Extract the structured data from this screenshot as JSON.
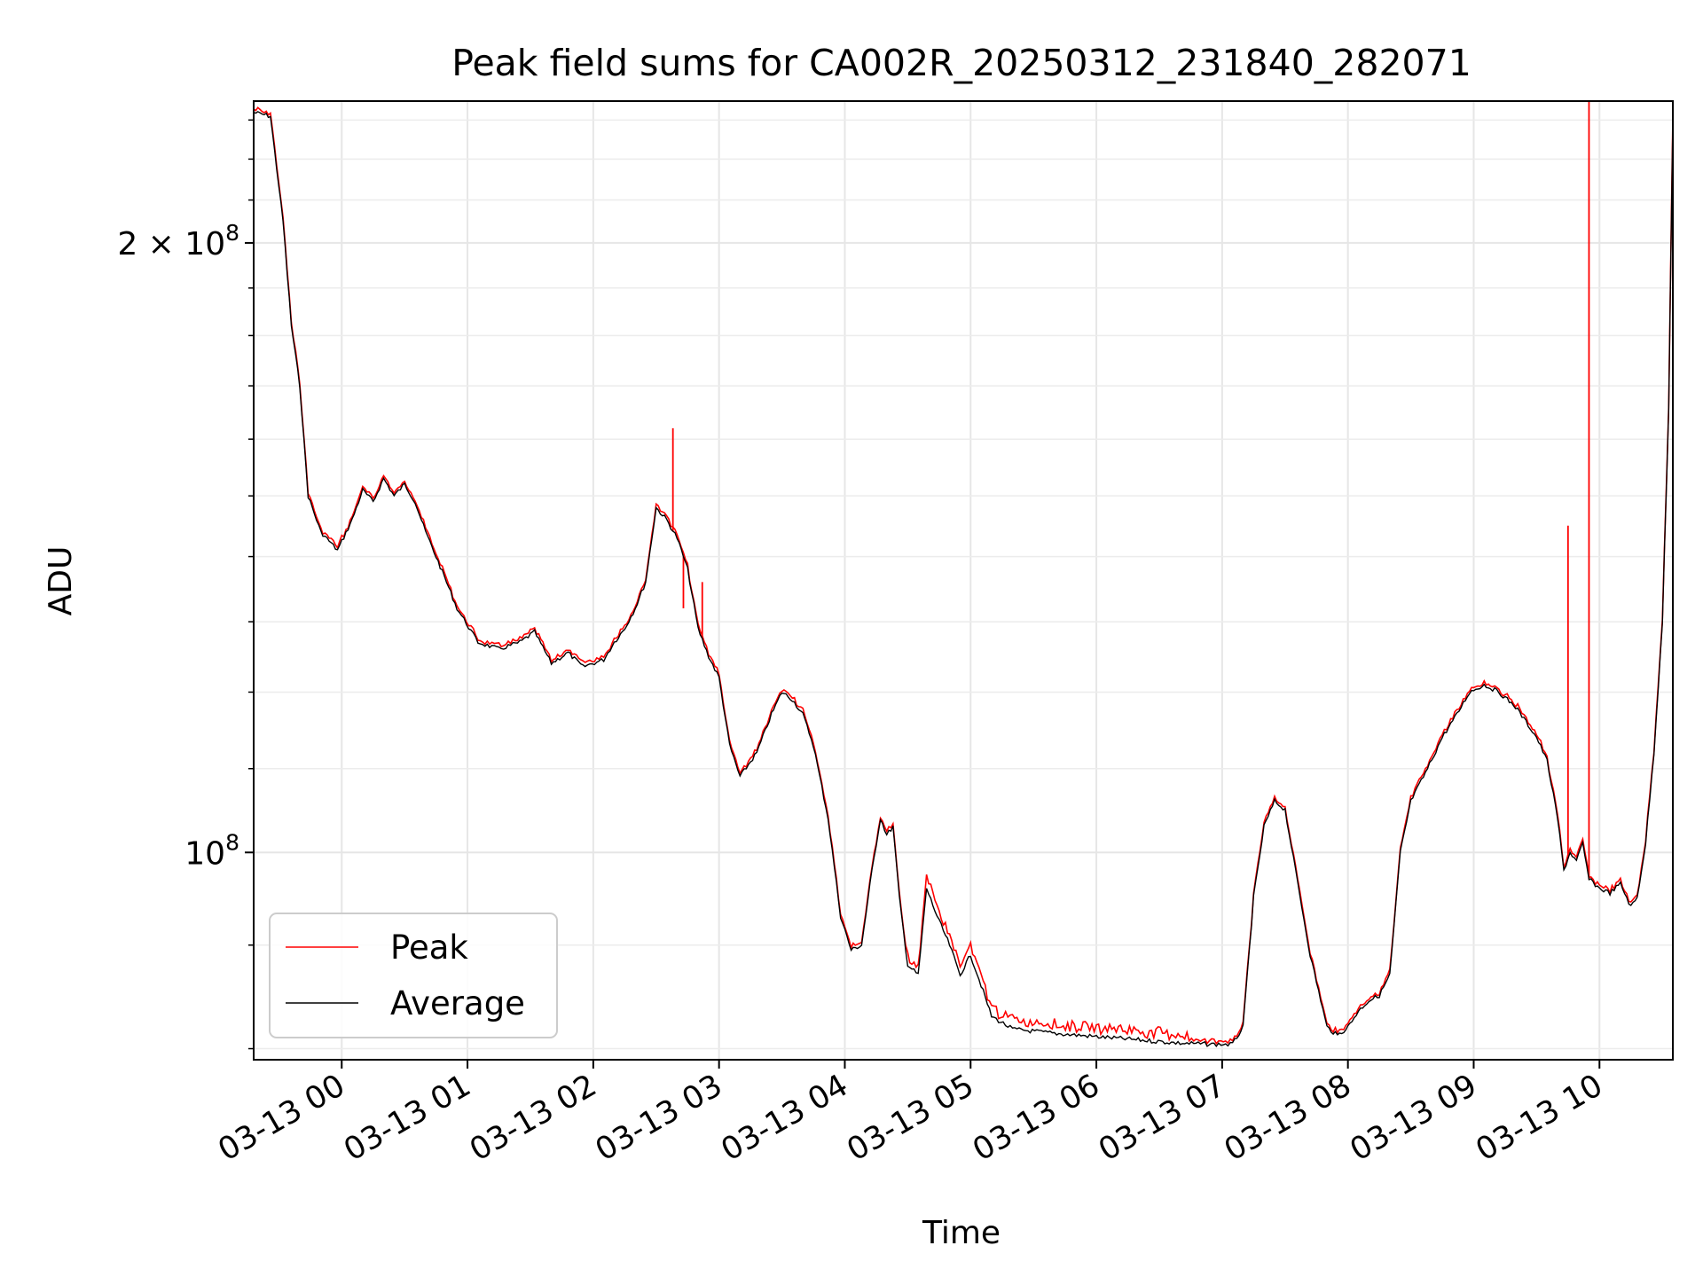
{
  "chart_data": {
    "type": "line",
    "title": "Peak field sums for CA002R_20250312_231840_282071",
    "xlabel": "Time",
    "ylabel": "ADU",
    "y_scale": "log",
    "grid": true,
    "legend_position": "lower-left",
    "x_ticks": [
      "03-13 00",
      "03-13 01",
      "03-13 02",
      "03-13 03",
      "03-13 04",
      "03-13 05",
      "03-13 06",
      "03-13 07",
      "03-13 08",
      "03-13 09",
      "03-13 10"
    ],
    "y_major_ticks": [
      {
        "value": 200000000,
        "mantissa": "2",
        "exponent": "8",
        "label": "2 × 10^8"
      },
      {
        "value": 100000000,
        "mantissa": "",
        "exponent": "8",
        "label": "10^8"
      }
    ],
    "x_range": [
      "2025-03-12 23:18",
      "2025-03-13 10:35"
    ],
    "y_range": [
      79000000,
      235000000
    ],
    "series": [
      {
        "name": "Average",
        "color": "#000000",
        "points": [
          [
            "2025-03-12 23:18",
            232000000
          ],
          [
            "2025-03-12 23:26",
            231000000
          ],
          [
            "2025-03-12 23:32",
            205000000
          ],
          [
            "2025-03-12 23:36",
            182000000
          ],
          [
            "2025-03-12 23:40",
            170000000
          ],
          [
            "2025-03-12 23:44",
            150000000
          ],
          [
            "2025-03-12 23:50",
            144000000
          ],
          [
            "2025-03-12 23:58",
            141000000
          ],
          [
            "2025-03-13 00:05",
            146000000
          ],
          [
            "2025-03-13 00:10",
            151000000
          ],
          [
            "2025-03-13 00:15",
            149000000
          ],
          [
            "2025-03-13 00:20",
            153000000
          ],
          [
            "2025-03-13 00:25",
            150000000
          ],
          [
            "2025-03-13 00:30",
            152000000
          ],
          [
            "2025-03-13 00:35",
            149000000
          ],
          [
            "2025-03-13 00:40",
            144000000
          ],
          [
            "2025-03-13 00:45",
            140000000
          ],
          [
            "2025-03-13 00:50",
            136000000
          ],
          [
            "2025-03-13 00:55",
            132000000
          ],
          [
            "2025-03-13 01:05",
            127000000
          ],
          [
            "2025-03-13 01:15",
            126000000
          ],
          [
            "2025-03-13 01:25",
            127000000
          ],
          [
            "2025-03-13 01:32",
            128500000
          ],
          [
            "2025-03-13 01:40",
            124000000
          ],
          [
            "2025-03-13 01:48",
            125500000
          ],
          [
            "2025-03-13 01:55",
            123500000
          ],
          [
            "2025-03-13 02:05",
            124500000
          ],
          [
            "2025-03-13 02:10",
            127000000
          ],
          [
            "2025-03-13 02:15",
            129000000
          ],
          [
            "2025-03-13 02:20",
            132000000
          ],
          [
            "2025-03-13 02:25",
            136000000
          ],
          [
            "2025-03-13 02:30",
            148000000
          ],
          [
            "2025-03-13 02:35",
            146000000
          ],
          [
            "2025-03-13 02:40",
            143000000
          ],
          [
            "2025-03-13 02:45",
            138000000
          ],
          [
            "2025-03-13 02:50",
            129000000
          ],
          [
            "2025-03-13 02:55",
            125000000
          ],
          [
            "2025-03-13 03:00",
            122000000
          ],
          [
            "2025-03-13 03:05",
            113000000
          ],
          [
            "2025-03-13 03:10",
            109000000
          ],
          [
            "2025-03-13 03:18",
            112000000
          ],
          [
            "2025-03-13 03:25",
            117000000
          ],
          [
            "2025-03-13 03:30",
            120000000
          ],
          [
            "2025-03-13 03:35",
            119000000
          ],
          [
            "2025-03-13 03:40",
            117000000
          ],
          [
            "2025-03-13 03:45",
            113000000
          ],
          [
            "2025-03-13 03:52",
            104000000
          ],
          [
            "2025-03-13 03:58",
            93000000
          ],
          [
            "2025-03-13 04:03",
            89500000
          ],
          [
            "2025-03-13 04:08",
            90000000
          ],
          [
            "2025-03-13 04:13",
            98000000
          ],
          [
            "2025-03-13 04:17",
            104000000
          ],
          [
            "2025-03-13 04:20",
            102000000
          ],
          [
            "2025-03-13 04:23",
            103000000
          ],
          [
            "2025-03-13 04:26",
            95000000
          ],
          [
            "2025-03-13 04:30",
            88000000
          ],
          [
            "2025-03-13 04:35",
            87000000
          ],
          [
            "2025-03-13 04:39",
            96000000
          ],
          [
            "2025-03-13 04:44",
            93000000
          ],
          [
            "2025-03-13 04:50",
            90000000
          ],
          [
            "2025-03-13 04:55",
            87000000
          ],
          [
            "2025-03-13 05:00",
            89000000
          ],
          [
            "2025-03-13 05:05",
            86000000
          ],
          [
            "2025-03-13 05:10",
            83000000
          ],
          [
            "2025-03-13 05:20",
            81800000
          ],
          [
            "2025-03-13 05:40",
            81400000
          ],
          [
            "2025-03-13 06:00",
            81100000
          ],
          [
            "2025-03-13 06:20",
            80800000
          ],
          [
            "2025-03-13 06:40",
            80500000
          ],
          [
            "2025-03-13 06:55",
            80400000
          ],
          [
            "2025-03-13 07:05",
            80400000
          ],
          [
            "2025-03-13 07:10",
            82000000
          ],
          [
            "2025-03-13 07:15",
            95000000
          ],
          [
            "2025-03-13 07:20",
            103000000
          ],
          [
            "2025-03-13 07:25",
            106000000
          ],
          [
            "2025-03-13 07:30",
            105000000
          ],
          [
            "2025-03-13 07:35",
            98000000
          ],
          [
            "2025-03-13 07:42",
            89000000
          ],
          [
            "2025-03-13 07:50",
            82000000
          ],
          [
            "2025-03-13 07:55",
            81200000
          ],
          [
            "2025-03-13 08:00",
            82000000
          ],
          [
            "2025-03-13 08:05",
            83500000
          ],
          [
            "2025-03-13 08:10",
            84500000
          ],
          [
            "2025-03-13 08:15",
            85000000
          ],
          [
            "2025-03-13 08:20",
            87000000
          ],
          [
            "2025-03-13 08:25",
            100000000
          ],
          [
            "2025-03-13 08:30",
            106000000
          ],
          [
            "2025-03-13 08:38",
            110000000
          ],
          [
            "2025-03-13 08:45",
            114000000
          ],
          [
            "2025-03-13 08:52",
            117000000
          ],
          [
            "2025-03-13 08:58",
            120000000
          ],
          [
            "2025-03-13 09:05",
            121000000
          ],
          [
            "2025-03-13 09:12",
            120000000
          ],
          [
            "2025-03-13 09:20",
            118000000
          ],
          [
            "2025-03-13 09:25",
            116000000
          ],
          [
            "2025-03-13 09:30",
            114000000
          ],
          [
            "2025-03-13 09:35",
            111000000
          ],
          [
            "2025-03-13 09:40",
            104000000
          ],
          [
            "2025-03-13 09:43",
            98000000
          ],
          [
            "2025-03-13 09:46",
            100000000
          ],
          [
            "2025-03-13 09:49",
            99000000
          ],
          [
            "2025-03-13 09:52",
            101000000
          ],
          [
            "2025-03-13 09:55",
            97000000
          ],
          [
            "2025-03-13 10:00",
            96000000
          ],
          [
            "2025-03-13 10:05",
            95500000
          ],
          [
            "2025-03-13 10:10",
            96500000
          ],
          [
            "2025-03-13 10:15",
            94000000
          ],
          [
            "2025-03-13 10:18",
            95000000
          ],
          [
            "2025-03-13 10:22",
            101000000
          ],
          [
            "2025-03-13 10:26",
            112000000
          ],
          [
            "2025-03-13 10:30",
            130000000
          ],
          [
            "2025-03-13 10:33",
            165000000
          ],
          [
            "2025-03-13 10:35",
            230000000
          ]
        ]
      },
      {
        "name": "Peak",
        "color": "#ff0000",
        "description_points": [
          [
            "2025-03-13 02:38",
            162000000
          ],
          [
            "2025-03-13 02:43",
            132000000
          ],
          [
            "2025-03-13 02:52",
            136000000
          ],
          [
            "2025-03-13 09:45",
            145000000
          ],
          [
            "2025-03-13 09:55",
            235000000
          ]
        ]
      }
    ]
  }
}
